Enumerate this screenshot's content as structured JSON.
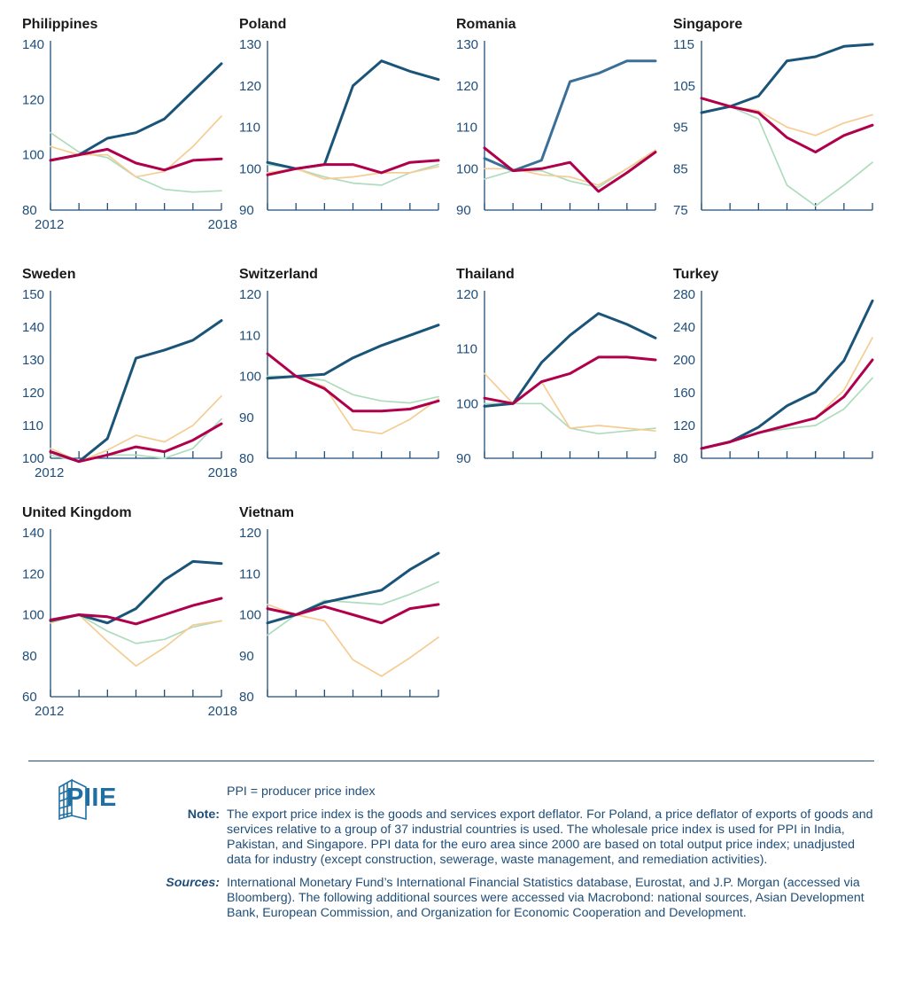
{
  "colors": {
    "ppi": "#1a5478",
    "ppi_romania": "#3a6f98",
    "export_price": "#aedcbd",
    "cpi": "#f5cd93",
    "exchange": "#b0004c",
    "axis": "#1f4e79"
  },
  "chart_data": [
    {
      "type": "line",
      "title": "Philippines",
      "x": [
        2012,
        2013,
        2014,
        2015,
        2016,
        2017,
        2018
      ],
      "xtick_labels": [
        "2012",
        "2018"
      ],
      "ylim": [
        80,
        140
      ],
      "yticks": [
        80,
        100,
        120,
        140
      ],
      "series": [
        {
          "values": [
            98,
            100,
            106,
            108,
            113,
            123,
            133
          ]
        },
        {
          "values": [
            108,
            101,
            99,
            92,
            87.5,
            86.5,
            87
          ]
        },
        {
          "values": [
            103,
            100,
            100,
            92,
            94,
            103,
            114
          ]
        },
        {
          "values": [
            98,
            100,
            102,
            97,
            94.5,
            98,
            98.5
          ]
        }
      ]
    },
    {
      "type": "line",
      "title": "Poland",
      "x": [
        2012,
        2013,
        2014,
        2015,
        2016,
        2017,
        2018
      ],
      "ylim": [
        90,
        130
      ],
      "yticks": [
        90,
        100,
        110,
        120,
        130
      ],
      "series": [
        {
          "values": [
            101.5,
            100,
            101,
            120,
            126,
            123.5,
            121.5
          ]
        },
        {
          "values": [
            101,
            100,
            98,
            96.5,
            96,
            99,
            101
          ]
        },
        {
          "values": [
            99,
            100,
            97.5,
            98,
            99,
            99,
            100.5
          ]
        },
        {
          "values": [
            98.5,
            100,
            101,
            101,
            99,
            101.5,
            102
          ]
        }
      ]
    },
    {
      "type": "line",
      "title": "Romania",
      "x": [
        2012,
        2013,
        2014,
        2015,
        2016,
        2017,
        2018
      ],
      "ylim": [
        90,
        130
      ],
      "yticks": [
        90,
        100,
        110,
        120,
        130
      ],
      "series": [
        {
          "values": [
            102.5,
            99.5,
            102,
            121,
            123,
            126,
            126
          ]
        },
        {
          "values": [
            97.5,
            99.5,
            99.5,
            97,
            95.5,
            100,
            104
          ]
        },
        {
          "values": [
            100,
            100,
            98.5,
            98,
            96,
            100,
            104.5
          ]
        },
        {
          "values": [
            105,
            99.5,
            100,
            101.5,
            94.5,
            99,
            104
          ]
        }
      ]
    },
    {
      "type": "line",
      "title": "Singapore",
      "x": [
        2012,
        2013,
        2014,
        2015,
        2016,
        2017,
        2018
      ],
      "ylim": [
        75,
        115
      ],
      "yticks": [
        75,
        85,
        95,
        105,
        115
      ],
      "series": [
        {
          "values": [
            98.5,
            100,
            102.5,
            111,
            112,
            114.5,
            115
          ]
        },
        {
          "values": [
            102,
            100,
            97,
            81,
            76,
            81,
            86.5
          ]
        },
        {
          "values": [
            102,
            100,
            99,
            95,
            93,
            96,
            98
          ]
        },
        {
          "values": [
            102,
            100,
            98.5,
            92.5,
            89,
            93,
            95.5
          ]
        }
      ]
    },
    {
      "type": "line",
      "title": "Sweden",
      "x": [
        2012,
        2013,
        2014,
        2015,
        2016,
        2017,
        2018
      ],
      "xtick_labels": [
        "2012",
        "2018"
      ],
      "ylim": [
        100,
        150
      ],
      "yticks": [
        100,
        110,
        120,
        130,
        140,
        150
      ],
      "series": [
        {
          "values": [
            102,
            99,
            106,
            130.5,
            133,
            136,
            142
          ]
        },
        {
          "values": [
            101,
            99,
            101,
            101,
            100,
            103,
            112
          ]
        },
        {
          "values": [
            103,
            99,
            102.5,
            107,
            105,
            110,
            119
          ]
        },
        {
          "values": [
            102,
            99,
            101,
            103.5,
            102,
            105.5,
            110.5
          ]
        }
      ]
    },
    {
      "type": "line",
      "title": "Switzerland",
      "x": [
        2012,
        2013,
        2014,
        2015,
        2016,
        2017,
        2018
      ],
      "ylim": [
        80,
        120
      ],
      "yticks": [
        80,
        90,
        100,
        110,
        120
      ],
      "series": [
        {
          "values": [
            99.5,
            100,
            100.5,
            104.5,
            107.5,
            110,
            112.5
          ]
        },
        {
          "values": [
            100,
            100,
            99,
            95.5,
            94,
            93.5,
            95
          ]
        },
        {
          "values": [
            99.5,
            100,
            97.5,
            87,
            86,
            89.5,
            94.5
          ]
        },
        {
          "values": [
            105.5,
            100,
            97,
            91.5,
            91.5,
            92,
            94
          ]
        }
      ]
    },
    {
      "type": "line",
      "title": "Thailand",
      "x": [
        2012,
        2013,
        2014,
        2015,
        2016,
        2017,
        2018
      ],
      "ylim": [
        90,
        120
      ],
      "yticks": [
        90,
        100,
        110,
        120
      ],
      "series": [
        {
          "values": [
            99.5,
            100,
            107.5,
            112.5,
            116.5,
            114.5,
            112
          ]
        },
        {
          "values": [
            100,
            100,
            100,
            95.5,
            94.5,
            95,
            95.5
          ]
        },
        {
          "values": [
            105.5,
            100,
            104,
            95.5,
            96,
            95.5,
            95
          ]
        },
        {
          "values": [
            101,
            100,
            104,
            105.5,
            108.5,
            108.5,
            108
          ]
        }
      ]
    },
    {
      "type": "line",
      "title": "Turkey",
      "x": [
        2012,
        2013,
        2014,
        2015,
        2016,
        2017,
        2018
      ],
      "ylim": [
        80,
        280
      ],
      "yticks": [
        80,
        120,
        160,
        200,
        240,
        280
      ],
      "series": [
        {
          "values": [
            92,
            100,
            118,
            144,
            161,
            199,
            272
          ]
        },
        {
          "values": [
            92,
            100,
            111,
            116,
            120,
            140,
            178
          ]
        },
        {
          "values": [
            92,
            100,
            111,
            120,
            129,
            163,
            227
          ]
        },
        {
          "values": [
            92,
            100,
            111,
            120,
            129,
            155,
            200
          ]
        }
      ]
    },
    {
      "type": "line",
      "title": "United Kingdom",
      "x": [
        2012,
        2013,
        2014,
        2015,
        2016,
        2017,
        2018
      ],
      "xtick_labels": [
        "2012",
        "2018"
      ],
      "ylim": [
        60,
        140
      ],
      "yticks": [
        60,
        80,
        100,
        120,
        140
      ],
      "series": [
        {
          "values": [
            97,
            100,
            96,
            103,
            117,
            126,
            125
          ]
        },
        {
          "values": [
            97,
            100,
            92,
            86,
            88,
            94,
            97
          ]
        },
        {
          "values": [
            96,
            100,
            87,
            75,
            84,
            95,
            97
          ]
        },
        {
          "values": [
            97.5,
            100,
            99,
            95.5,
            100,
            104.5,
            108
          ]
        }
      ]
    },
    {
      "type": "line",
      "title": "Vietnam",
      "x": [
        2012,
        2013,
        2014,
        2015,
        2016,
        2017,
        2018
      ],
      "ylim": [
        80,
        120
      ],
      "yticks": [
        80,
        90,
        100,
        110,
        120
      ],
      "series": [
        {
          "values": [
            98,
            100,
            103,
            104.5,
            106,
            111,
            115
          ]
        },
        {
          "values": [
            95,
            100,
            103.5,
            103,
            102.5,
            105,
            108
          ]
        },
        {
          "values": [
            102.5,
            100,
            98.5,
            89,
            85,
            89.5,
            94.5
          ]
        },
        {
          "values": [
            101.5,
            100,
            102,
            100,
            98,
            101.5,
            102.5
          ]
        }
      ]
    }
  ],
  "footer": {
    "logo_text": "PIIE",
    "definition": "PPI = producer price index",
    "note_label": "Note:",
    "note_text": "The export price index is the goods and services export deflator. For Poland, a price deflator of exports of goods and services relative to a group of 37 industrial countries is used. The wholesale price index is used for PPI in India, Pakistan, and Singapore. PPI data for the euro area since 2000 are based on total output price index; unadjusted data for industry (except construction, sewerage, waste management, and remediation activities).",
    "sources_label": "Sources:",
    "sources_text": "International Monetary Fund’s International Financial Statistics database, Eurostat, and J.P. Morgan (accessed via Bloomberg). The following additional sources were accessed via Macrobond: national sources, Asian Development Bank, European Commission, and Organization for Economic Cooperation and Development."
  }
}
